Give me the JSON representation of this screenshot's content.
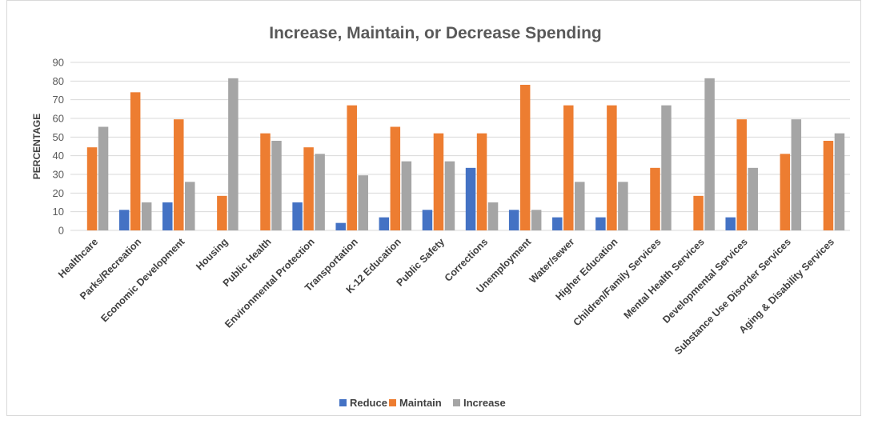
{
  "chart_data": {
    "type": "bar",
    "title": "Increase, Maintain, or Decrease Spending",
    "ylabel": "PERCENTAGE",
    "xlabel": "",
    "ylim": [
      0,
      90
    ],
    "yticks": [
      0,
      10,
      20,
      30,
      40,
      50,
      60,
      70,
      80,
      90
    ],
    "grid": true,
    "legend_position": "bottom",
    "categories": [
      "Healthcare",
      "Parks/Recreation",
      "Economic Development",
      "Housing",
      "Public Health",
      "Environmental Protection",
      "Transportation",
      "K-12 Education",
      "Public Safety",
      "Corrections",
      "Unemployment",
      "Water/sewer",
      "Higher Education",
      "Children/Family Services",
      "Mental Health Services",
      "Developmental Services",
      "Substance Use Disorder Services",
      "Aging & Disability Services"
    ],
    "series": [
      {
        "name": "Reduce",
        "color": "#4472c4",
        "values": [
          0,
          11,
          15,
          0,
          0,
          15,
          4,
          7,
          11,
          33.5,
          11,
          7,
          7,
          0,
          0,
          7,
          0,
          0
        ]
      },
      {
        "name": "Maintain",
        "color": "#ed7d31",
        "values": [
          44.5,
          74,
          59.5,
          18.5,
          52,
          44.5,
          67,
          55.5,
          52,
          52,
          78,
          67,
          67,
          33.5,
          18.5,
          59.5,
          41,
          48
        ]
      },
      {
        "name": "Increase",
        "color": "#a5a5a5",
        "values": [
          55.5,
          15,
          26,
          81.5,
          48,
          41,
          29.5,
          37,
          37,
          15,
          11,
          26,
          26,
          67,
          81.5,
          33.5,
          59.5,
          52
        ]
      }
    ]
  }
}
